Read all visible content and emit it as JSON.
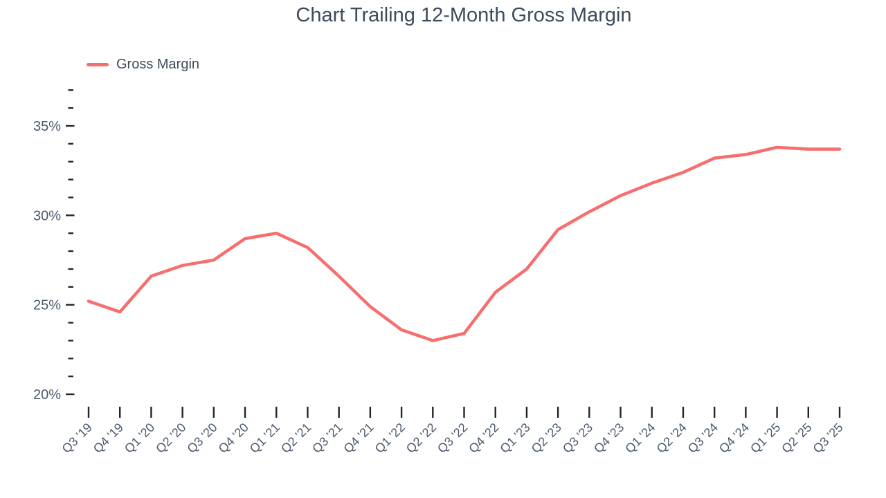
{
  "title": "Chart Trailing 12-Month Gross Margin",
  "legend": {
    "label": "Gross Margin",
    "swatch_icon": "line-swatch-icon"
  },
  "colors": {
    "line": "#f76e6e",
    "title_text": "#3e4b5b",
    "axis_label_text": "#4c596e",
    "tick_mark": "#20262e",
    "background": "#ffffff"
  },
  "chart_data": {
    "type": "line",
    "title": "Chart Trailing 12-Month Gross Margin",
    "xlabel": "",
    "ylabel": "",
    "legend_position": "top-left",
    "grid": false,
    "categories": [
      "Q3 '19",
      "Q4 '19",
      "Q1 '20",
      "Q2 '20",
      "Q3 '20",
      "Q4 '20",
      "Q1 '21",
      "Q2 '21",
      "Q3 '21",
      "Q4 '21",
      "Q1 '22",
      "Q2 '22",
      "Q3 '22",
      "Q4 '22",
      "Q1 '23",
      "Q2 '23",
      "Q3 '23",
      "Q4 '23",
      "Q1 '24",
      "Q2 '24",
      "Q3 '24",
      "Q4 '24",
      "Q1 '25",
      "Q2 '25",
      "Q3 '25"
    ],
    "series": [
      {
        "name": "Gross Margin",
        "unit": "%",
        "values": [
          25.2,
          24.6,
          26.6,
          27.2,
          27.5,
          28.7,
          29.0,
          28.2,
          26.6,
          24.9,
          23.6,
          23.0,
          23.4,
          25.7,
          27.0,
          29.2,
          30.2,
          31.1,
          31.8,
          32.4,
          33.2,
          33.4,
          33.8,
          33.7,
          33.7
        ]
      }
    ],
    "y_axis": {
      "unit": "%",
      "min": 20,
      "max": 37,
      "major_ticks": [
        20,
        25,
        30,
        35
      ],
      "major_tick_labels": [
        "20%",
        "25%",
        "30%",
        "35%"
      ],
      "minor_tick_step": 1
    },
    "x_axis": {
      "label_rotation": -45,
      "ticks_per_category": true
    }
  }
}
